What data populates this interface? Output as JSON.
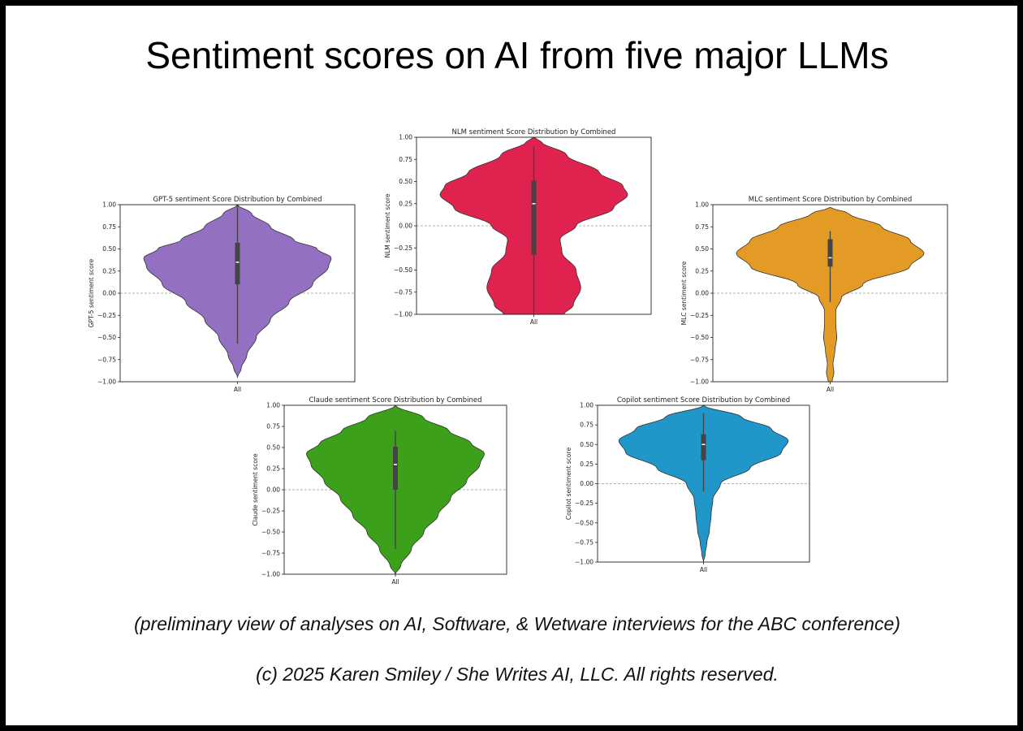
{
  "page": {
    "title": "Sentiment scores on AI from five major LLMs",
    "caption": "(preliminary view of analyses on AI, Software, & Wetware interviews for the ABC conference)",
    "copyright": "(c) 2025 Karen Smiley / She Writes AI, LLC. All rights reserved."
  },
  "chart_data": [
    {
      "type": "violin",
      "title": "GPT-5 sentiment Score Distribution by Combined",
      "ylabel": "GPT-5 sentiment score",
      "categories": [
        "All"
      ],
      "ylim": [
        -1.0,
        1.0
      ],
      "yticks": [
        "1.00",
        "0.75",
        "0.50",
        "0.25",
        "0.00",
        "−0.25",
        "−0.50",
        "−0.75",
        "−1.00"
      ],
      "color": "#9370c2",
      "density": [
        [
          -0.95,
          0.0
        ],
        [
          -0.85,
          0.04
        ],
        [
          -0.7,
          0.1
        ],
        [
          -0.5,
          0.2
        ],
        [
          -0.3,
          0.35
        ],
        [
          -0.1,
          0.55
        ],
        [
          0.1,
          0.8
        ],
        [
          0.3,
          0.97
        ],
        [
          0.4,
          1.0
        ],
        [
          0.5,
          0.85
        ],
        [
          0.6,
          0.6
        ],
        [
          0.75,
          0.35
        ],
        [
          0.9,
          0.15
        ],
        [
          1.0,
          0.0
        ]
      ],
      "box": {
        "q1": 0.1,
        "median": 0.35,
        "q3": 0.57,
        "whisker_low": -0.57,
        "whisker_high": 1.0
      }
    },
    {
      "type": "violin",
      "title": "NLM sentiment Score Distribution by Combined",
      "ylabel": "NLM sentiment score",
      "categories": [
        "All"
      ],
      "ylim": [
        -1.0,
        1.0
      ],
      "yticks": [
        "1.00",
        "0.75",
        "0.50",
        "0.25",
        "0.00",
        "−0.25",
        "−0.50",
        "−0.75",
        "−1.00"
      ],
      "color": "#e0224f",
      "density": [
        [
          -1.0,
          0.32
        ],
        [
          -0.9,
          0.42
        ],
        [
          -0.7,
          0.5
        ],
        [
          -0.5,
          0.45
        ],
        [
          -0.3,
          0.3
        ],
        [
          -0.15,
          0.28
        ],
        [
          0.0,
          0.45
        ],
        [
          0.2,
          0.85
        ],
        [
          0.35,
          1.0
        ],
        [
          0.45,
          0.95
        ],
        [
          0.6,
          0.7
        ],
        [
          0.8,
          0.35
        ],
        [
          0.95,
          0.08
        ],
        [
          1.0,
          0.0
        ]
      ],
      "box": {
        "q1": -0.33,
        "median": 0.25,
        "q3": 0.51,
        "whisker_low": -1.0,
        "whisker_high": 0.9
      }
    },
    {
      "type": "violin",
      "title": "MLC sentiment Score Distribution by Combined",
      "ylabel": "MLC sentiment score",
      "categories": [
        "All"
      ],
      "ylim": [
        -1.0,
        1.0
      ],
      "yticks": [
        "1.00",
        "0.75",
        "0.50",
        "0.25",
        "0.00",
        "−0.25",
        "−0.50",
        "−0.75",
        "−1.00"
      ],
      "color": "#e39b25",
      "density": [
        [
          -1.0,
          0.02
        ],
        [
          -0.9,
          0.04
        ],
        [
          -0.8,
          0.03
        ],
        [
          -0.65,
          0.05
        ],
        [
          -0.5,
          0.07
        ],
        [
          -0.35,
          0.06
        ],
        [
          -0.2,
          0.06
        ],
        [
          -0.05,
          0.12
        ],
        [
          0.1,
          0.35
        ],
        [
          0.3,
          0.85
        ],
        [
          0.45,
          1.0
        ],
        [
          0.6,
          0.85
        ],
        [
          0.75,
          0.55
        ],
        [
          0.9,
          0.2
        ],
        [
          0.97,
          0.0
        ]
      ],
      "box": {
        "q1": 0.3,
        "median": 0.4,
        "q3": 0.61,
        "whisker_low": -0.1,
        "whisker_high": 0.7
      }
    },
    {
      "type": "violin",
      "title": "Claude sentiment Score Distribution by Combined",
      "ylabel": "Claude sentiment score",
      "categories": [
        "All"
      ],
      "ylim": [
        -1.0,
        1.0
      ],
      "yticks": [
        "1.00",
        "0.75",
        "0.50",
        "0.25",
        "0.00",
        "−0.25",
        "−0.50",
        "−0.75",
        "−1.00"
      ],
      "color": "#3da01a",
      "density": [
        [
          -1.0,
          0.0
        ],
        [
          -0.9,
          0.06
        ],
        [
          -0.7,
          0.18
        ],
        [
          -0.5,
          0.32
        ],
        [
          -0.3,
          0.48
        ],
        [
          -0.1,
          0.62
        ],
        [
          0.1,
          0.8
        ],
        [
          0.3,
          0.95
        ],
        [
          0.43,
          1.0
        ],
        [
          0.55,
          0.85
        ],
        [
          0.7,
          0.6
        ],
        [
          0.85,
          0.32
        ],
        [
          1.0,
          0.0
        ]
      ],
      "box": {
        "q1": 0.0,
        "median": 0.3,
        "q3": 0.51,
        "whisker_low": -0.7,
        "whisker_high": 0.7
      }
    },
    {
      "type": "violin",
      "title": "Copilot sentiment Score Distribution by Combined",
      "ylabel": "Copilot sentiment score",
      "categories": [
        "All"
      ],
      "ylim": [
        -1.0,
        1.0
      ],
      "yticks": [
        "1.00",
        "0.75",
        "0.50",
        "0.25",
        "0.00",
        "−0.25",
        "−0.50",
        "−0.75",
        "−1.00"
      ],
      "color": "#2196c9",
      "density": [
        [
          -1.0,
          0.0
        ],
        [
          -0.9,
          0.02
        ],
        [
          -0.75,
          0.04
        ],
        [
          -0.6,
          0.07
        ],
        [
          -0.4,
          0.09
        ],
        [
          -0.2,
          0.11
        ],
        [
          0.0,
          0.2
        ],
        [
          0.2,
          0.55
        ],
        [
          0.4,
          0.92
        ],
        [
          0.55,
          1.0
        ],
        [
          0.7,
          0.8
        ],
        [
          0.85,
          0.45
        ],
        [
          1.0,
          0.0
        ]
      ],
      "box": {
        "q1": 0.3,
        "median": 0.5,
        "q3": 0.63,
        "whisker_low": -0.1,
        "whisker_high": 0.9
      }
    }
  ]
}
